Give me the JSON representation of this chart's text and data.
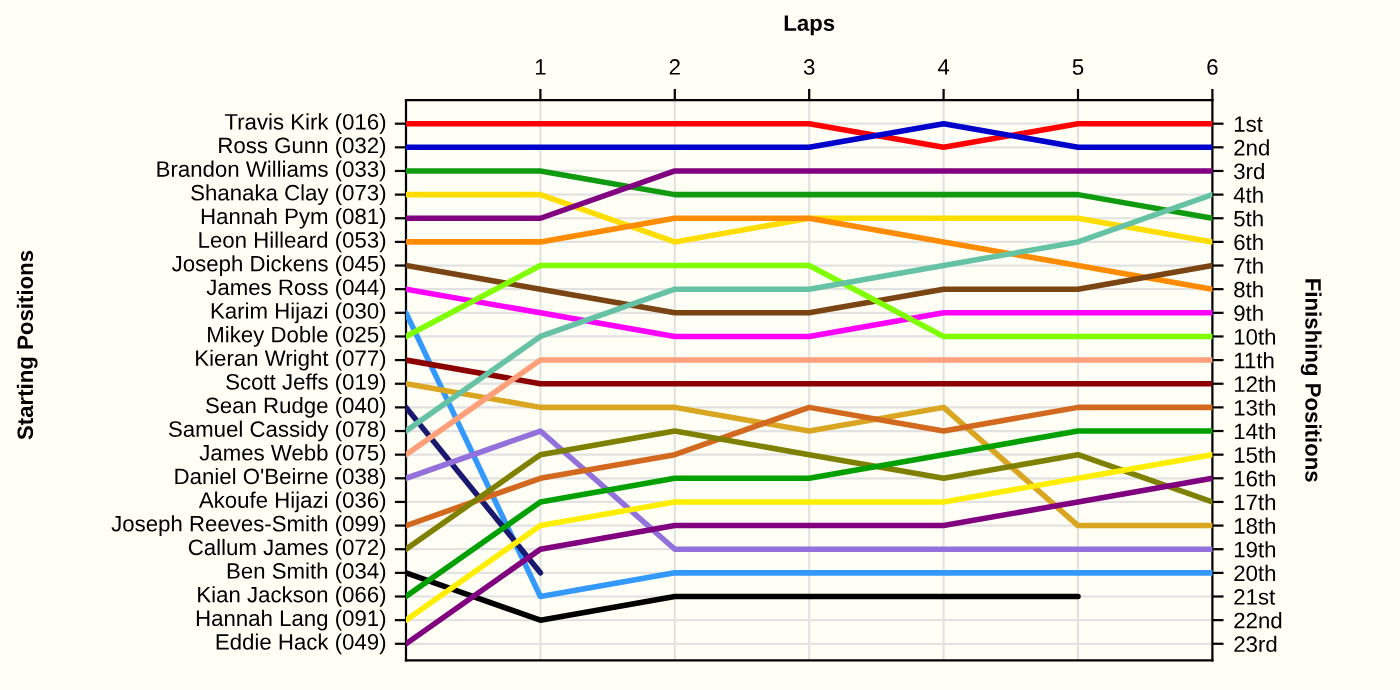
{
  "chart_data": {
    "type": "line",
    "xlabel": "Laps",
    "ylabel": "Finishing Positions",
    "x": [
      0,
      1,
      2,
      3,
      4,
      5,
      6
    ],
    "xlim": [
      0,
      6
    ],
    "xticks": [
      1,
      2,
      3,
      4,
      5,
      6
    ],
    "ylim": [
      23.7,
      0
    ],
    "yticks": [
      {
        "value": 1,
        "label": "1st"
      },
      {
        "value": 2,
        "label": "2nd"
      },
      {
        "value": 3,
        "label": "3rd"
      },
      {
        "value": 4,
        "label": "4th"
      },
      {
        "value": 5,
        "label": "5th"
      },
      {
        "value": 6,
        "label": "6th"
      },
      {
        "value": 7,
        "label": "7th"
      },
      {
        "value": 8,
        "label": "8th"
      },
      {
        "value": 9,
        "label": "9th"
      },
      {
        "value": 10,
        "label": "10th"
      },
      {
        "value": 11,
        "label": "11th"
      },
      {
        "value": 12,
        "label": "12th"
      },
      {
        "value": 13,
        "label": "13th"
      },
      {
        "value": 14,
        "label": "14th"
      },
      {
        "value": 15,
        "label": "15th"
      },
      {
        "value": 16,
        "label": "16th"
      },
      {
        "value": 17,
        "label": "17th"
      },
      {
        "value": 18,
        "label": "18th"
      },
      {
        "value": 19,
        "label": "19th"
      },
      {
        "value": 20,
        "label": "20th"
      },
      {
        "value": 21,
        "label": "21st"
      },
      {
        "value": 22,
        "label": "22nd"
      },
      {
        "value": 23,
        "label": "23rd"
      }
    ],
    "grid": true,
    "annotations": [
      "Starting Positions",
      "Travis Kirk (016)",
      "Ross Gunn (032)",
      "Brandon Williams (033)",
      "Shanaka Clay (073)",
      "Hannah Pym (081)",
      "Leon Hilleard (053)",
      "Joseph Dickens (045)",
      "James Ross (044)",
      "Karim Hijazi (030)",
      "Mikey Doble (025)",
      "Kieran Wright (077)",
      "Scott Jeffs (019)",
      "Sean Rudge (040)",
      "Samuel Cassidy (078)",
      "James Webb (075)",
      "Daniel O'Beirne (038)",
      "Akoufe Hijazi (036)",
      "Joseph Reeves-Smith (099)",
      "Callum James (072)",
      "Ben Smith (034)",
      "Kian Jackson (066)",
      "Hannah Lang (091)",
      "Eddie Hack (049)"
    ],
    "series": [
      {
        "color": "#ff0000",
        "values": [
          1,
          1,
          1,
          1,
          2,
          1,
          1
        ]
      },
      {
        "color": "#0000cd",
        "values": [
          2,
          2,
          2,
          2,
          1,
          2,
          2
        ]
      },
      {
        "color": "#109a10",
        "values": [
          3,
          3,
          4,
          4,
          4,
          4,
          5
        ]
      },
      {
        "color": "#ffdd00",
        "values": [
          4,
          4,
          6,
          5,
          5,
          5,
          6
        ]
      },
      {
        "color": "#800080",
        "values": [
          5,
          5,
          3,
          3,
          3,
          3,
          3
        ]
      },
      {
        "color": "#ff8c00",
        "values": [
          6,
          6,
          5,
          5,
          6,
          7,
          8
        ]
      },
      {
        "color": "#7b4513",
        "values": [
          7,
          8,
          9,
          9,
          8,
          8,
          7
        ]
      },
      {
        "color": "#ff00ff",
        "values": [
          8,
          9,
          10,
          10,
          9,
          9,
          9
        ]
      },
      {
        "color": "#3399ff",
        "values": [
          9,
          21,
          20,
          20,
          20,
          20,
          20
        ]
      },
      {
        "color": "#7fff00",
        "values": [
          10,
          7,
          7,
          7,
          10,
          10,
          10
        ]
      },
      {
        "color": "#8b0000",
        "values": [
          11,
          12,
          12,
          12,
          12,
          12,
          12
        ]
      },
      {
        "color": "#daa520",
        "values": [
          12,
          13,
          13,
          14,
          13,
          18,
          18
        ]
      },
      {
        "color": "#191970",
        "values": [
          13,
          20,
          null,
          null,
          null,
          null,
          null
        ]
      },
      {
        "color": "#66c2a5",
        "values": [
          14,
          10,
          8,
          8,
          7,
          6,
          4
        ]
      },
      {
        "color": "#ffa07a",
        "values": [
          15,
          11,
          11,
          11,
          11,
          11,
          11
        ]
      },
      {
        "color": "#9370db",
        "values": [
          16,
          14,
          19,
          19,
          19,
          19,
          19
        ]
      },
      {
        "color": "#d2691e",
        "values": [
          18,
          16,
          15,
          13,
          14,
          13,
          13
        ]
      },
      {
        "color": "#808000",
        "values": [
          19,
          15,
          14,
          15,
          16,
          15,
          17
        ]
      },
      {
        "color": "#000000",
        "values": [
          20,
          22,
          21,
          21,
          21,
          21,
          null
        ]
      },
      {
        "color": "#00a000",
        "values": [
          21,
          17,
          16,
          16,
          15,
          14,
          14
        ]
      },
      {
        "color": "#ffee00",
        "values": [
          22,
          18,
          17,
          17,
          17,
          16,
          15
        ]
      },
      {
        "color": "#800080",
        "values": [
          23,
          19,
          18,
          18,
          18,
          17,
          16
        ]
      }
    ]
  }
}
